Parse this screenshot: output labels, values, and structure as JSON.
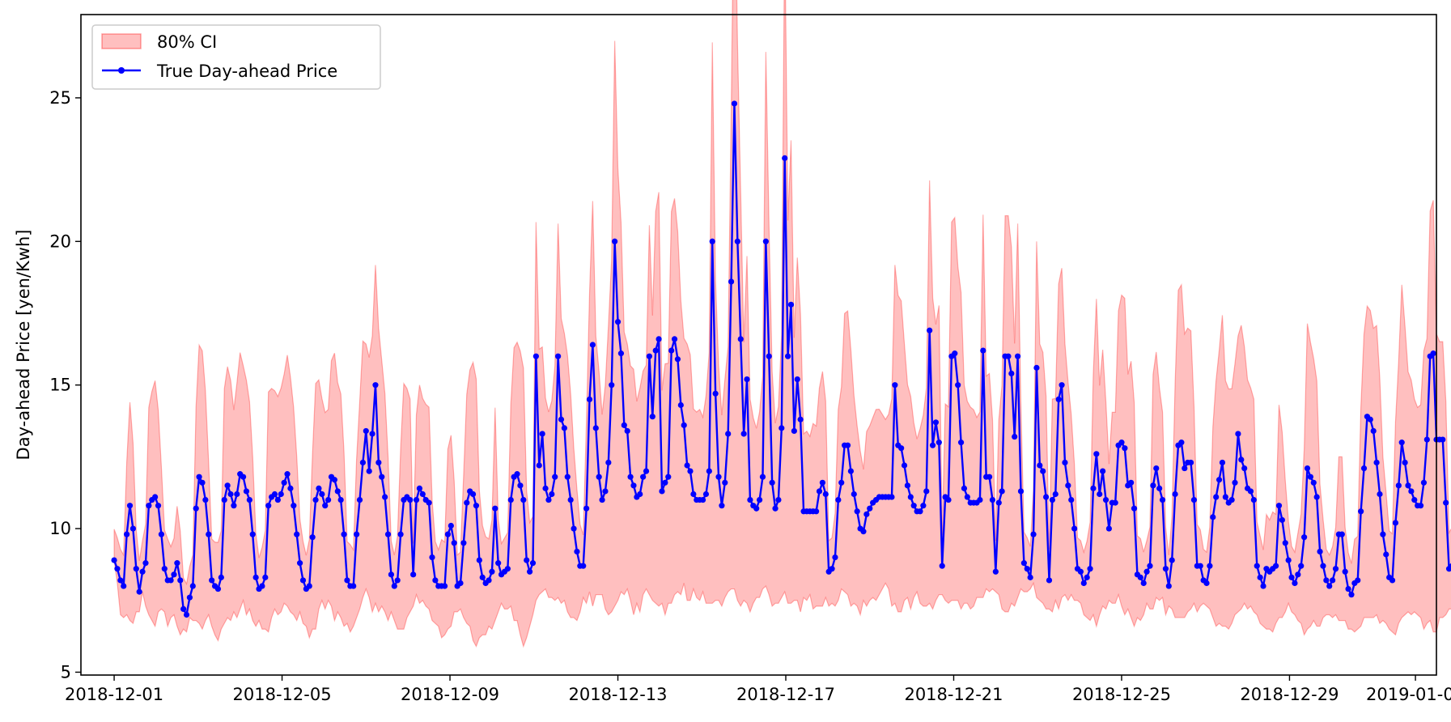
{
  "chart_data": {
    "type": "line",
    "title": "",
    "xlabel": "",
    "ylabel": "Day-ahead Price [yen/Kwh]",
    "xlim": [
      "2018-11-30T05:00",
      "2019-01-01T12:00"
    ],
    "ylim": [
      4.9,
      27.9
    ],
    "x_start": "2018-12-01T00:00",
    "x_end": "2019-01-01T00:00",
    "x_step_hours": 1.8,
    "x_ticks": [
      "2018-12-01",
      "2018-12-05",
      "2018-12-09",
      "2018-12-13",
      "2018-12-17",
      "2018-12-21",
      "2018-12-25",
      "2018-12-29",
      "2019-01-01"
    ],
    "y_ticks": [
      5,
      10,
      15,
      20,
      25
    ],
    "grid": false,
    "legend": "upper-left",
    "series": [
      {
        "name": "True Day-ahead Price",
        "color": "#0000ff",
        "style": "line-with-dot-markers",
        "values": [
          8.9,
          8.6,
          8.2,
          8.0,
          9.8,
          10.8,
          10.0,
          8.6,
          7.8,
          8.5,
          8.8,
          10.8,
          11.0,
          11.1,
          10.8,
          9.8,
          8.6,
          8.2,
          8.2,
          8.4,
          8.8,
          8.2,
          7.2,
          7.0,
          7.6,
          8.0,
          10.7,
          11.8,
          11.6,
          11.0,
          9.8,
          8.2,
          8.0,
          7.9,
          8.3,
          11.0,
          11.5,
          11.2,
          10.8,
          11.2,
          11.9,
          11.8,
          11.3,
          11.0,
          9.8,
          8.3,
          7.9,
          8.0,
          8.3,
          10.8,
          11.1,
          11.2,
          11.0,
          11.2,
          11.6,
          11.9,
          11.4,
          10.8,
          9.8,
          8.8,
          8.2,
          7.9,
          8.0,
          9.7,
          11.0,
          11.4,
          11.2,
          10.8,
          11.0,
          11.8,
          11.7,
          11.3,
          11.0,
          9.8,
          8.2,
          8.0,
          8.0,
          9.8,
          11.0,
          12.3,
          13.4,
          12.0,
          13.3,
          15.0,
          12.3,
          11.8,
          11.1,
          9.8,
          8.4,
          8.0,
          8.2,
          9.8,
          11.0,
          11.1,
          11.0,
          8.4,
          11.0,
          11.4,
          11.2,
          11.0,
          10.9,
          9.0,
          8.2,
          8.0,
          8.0,
          8.0,
          9.8,
          10.1,
          9.5,
          8.0,
          8.1,
          9.5,
          10.9,
          11.3,
          11.2,
          10.8,
          8.9,
          8.3,
          8.1,
          8.2,
          8.5,
          10.7,
          8.8,
          8.4,
          8.5,
          8.6,
          11.0,
          11.8,
          11.9,
          11.5,
          11.0,
          8.9,
          8.5,
          8.8,
          16.0,
          12.2,
          13.3,
          11.4,
          11.0,
          11.2,
          11.8,
          16.0,
          13.8,
          13.5,
          11.8,
          11.0,
          10.0,
          9.2,
          8.7,
          8.7,
          10.7,
          14.5,
          16.4,
          13.5,
          11.8,
          11.0,
          11.3,
          12.3,
          15.0,
          20.0,
          17.2,
          16.1,
          13.6,
          13.4,
          11.8,
          11.5,
          11.1,
          11.2,
          11.8,
          12.0,
          16.0,
          13.9,
          16.2,
          16.6,
          11.3,
          11.6,
          11.8,
          16.2,
          16.6,
          15.9,
          14.3,
          13.6,
          12.2,
          12.0,
          11.2,
          11.0,
          11.0,
          11.0,
          11.2,
          12.0,
          20.0,
          14.7,
          11.8,
          10.8,
          11.6,
          13.3,
          18.6,
          24.8,
          20.0,
          16.6,
          13.3,
          15.2,
          11.0,
          10.8,
          10.7,
          11.0,
          11.8,
          20.0,
          16.0,
          11.6,
          10.7,
          11.0,
          13.5,
          22.9,
          16.0,
          17.8,
          13.4,
          15.2,
          13.8,
          10.6,
          10.6,
          10.6,
          10.6,
          10.6,
          11.3,
          11.6,
          11.2,
          8.5,
          8.6,
          9.0,
          11.0,
          11.6,
          12.9,
          12.9,
          12.0,
          11.2,
          10.6,
          10.0,
          9.9,
          10.5,
          10.7,
          10.9,
          11.0,
          11.1,
          11.1,
          11.1,
          11.1,
          11.1,
          15.0,
          12.9,
          12.8,
          12.2,
          11.5,
          11.1,
          10.8,
          10.6,
          10.6,
          10.8,
          11.3,
          16.9,
          12.9,
          13.7,
          13.0,
          8.7,
          11.1,
          11.0,
          16.0,
          16.1,
          15.0,
          13.0,
          11.4,
          11.1,
          10.9,
          10.9,
          10.9,
          11.0,
          16.2,
          11.8,
          11.8,
          11.0,
          8.5,
          10.9,
          11.3,
          16.0,
          16.0,
          15.4,
          13.2,
          16.0,
          11.3,
          8.8,
          8.6,
          8.3,
          9.8,
          15.6,
          12.2,
          12.0,
          11.1,
          8.2,
          11.0,
          11.2,
          14.5,
          15.0,
          12.3,
          11.5,
          11.0,
          10.0,
          8.6,
          8.5,
          8.1,
          8.3,
          8.6,
          11.4,
          12.6,
          11.2,
          12.0,
          11.0,
          10.0,
          10.9,
          10.9,
          12.9,
          13.0,
          12.8,
          11.5,
          11.6,
          10.7,
          8.4,
          8.3,
          8.1,
          8.5,
          8.7,
          11.5,
          12.1,
          11.4,
          11.0,
          8.6,
          8.0,
          8.9,
          11.2,
          12.9,
          13.0,
          12.1,
          12.3,
          12.3,
          11.0,
          8.7,
          8.7,
          8.2,
          8.1,
          8.7,
          10.4,
          11.1,
          11.7,
          12.3,
          11.1,
          10.9,
          11.0,
          11.6,
          13.3,
          12.4,
          12.1,
          11.4,
          11.3,
          11.0,
          8.7,
          8.3,
          8.0,
          8.6,
          8.5,
          8.6,
          8.7,
          10.8,
          10.3,
          9.5,
          8.9,
          8.3,
          8.1,
          8.4,
          8.7,
          9.7,
          12.1,
          11.8,
          11.6,
          11.1,
          9.2,
          8.7,
          8.2,
          8.0,
          8.2,
          8.6,
          9.8,
          9.8,
          8.5,
          7.9,
          7.7,
          8.1,
          8.2,
          10.6,
          12.1,
          13.9,
          13.8,
          13.4,
          12.3,
          11.2,
          9.8,
          9.1,
          8.3,
          8.2,
          10.2,
          11.5,
          13.0,
          12.3,
          11.5,
          11.3,
          11.0,
          10.8,
          10.8,
          11.6,
          13.1,
          16.0,
          16.1,
          13.1,
          13.1,
          13.1,
          10.9,
          8.6,
          8.7,
          8.4,
          8.6,
          8.8,
          10.6,
          11.6,
          13.7,
          12.5,
          12.2,
          10.7,
          8.8,
          11.2,
          11.8,
          13.4,
          13.7,
          13.4,
          13.1,
          11.8,
          11.5,
          10.8,
          8.9,
          8.7,
          8.6,
          8.5,
          9.9,
          11.4,
          11.6,
          11.7,
          11.1,
          11.0,
          8.7,
          10.9,
          9.5,
          11.3,
          12.3,
          11.9,
          11.7,
          11.5,
          11.3,
          11.0,
          9.0,
          8.6,
          8.2,
          8.0,
          9.0,
          12.8,
          11.3,
          11.0,
          10.7,
          8.6,
          10.4,
          11.0,
          11.4,
          12.0,
          12.1,
          11.5,
          11.3,
          11.0,
          11.8,
          10.7,
          8.5,
          8.2,
          8.3,
          8.2,
          10.6,
          10.8,
          10.1,
          8.2,
          8.0,
          7.9,
          8.2,
          10.7,
          11.4,
          11.7,
          11.4,
          11.1,
          11.8,
          11.1,
          10.0,
          8.9,
          8.4,
          8.8,
          9.5,
          10.8,
          10.9,
          9.8,
          8.9,
          8.2,
          8.1,
          8.2,
          8.9,
          10.0,
          10.9,
          12.1,
          13.6,
          13.7,
          13.6,
          13.7,
          13.7,
          11.5,
          10.9,
          9.0,
          8.6,
          9.0,
          8.9,
          9.7,
          10.9,
          11.0,
          9.0,
          8.8,
          8.6,
          7.9,
          7.9,
          8.0,
          8.2,
          8.9,
          10.7,
          11.3,
          12.4,
          11.3,
          11.3,
          11.0,
          10.9,
          10.9
        ]
      },
      {
        "name": "80% CI",
        "type": "band",
        "color": "#ff0000",
        "lower": [
          9.8,
          8.1,
          7.0,
          6.9,
          7.0,
          6.8,
          6.7,
          7.1,
          7.1,
          7.8,
          7.3,
          7.0,
          6.8,
          6.6,
          7.1,
          7.2,
          7.1,
          6.6,
          6.9,
          7.0,
          6.6,
          6.3,
          6.5,
          6.4,
          6.9,
          6.8,
          6.8,
          6.7,
          6.5,
          6.8,
          7.0,
          6.6,
          6.3,
          6.1,
          6.5,
          6.7,
          6.9,
          6.8,
          7.1,
          6.9,
          7.2,
          7.5,
          7.0,
          7.2,
          6.8,
          6.6,
          6.8,
          6.5,
          6.5,
          6.4,
          6.9,
          7.2,
          7.0,
          7.1,
          7.4,
          7.3,
          7.1,
          7.0,
          6.8,
          7.1,
          6.7,
          6.6,
          6.2,
          6.5,
          6.5,
          7.2,
          7.5,
          7.2,
          7.5,
          7.3,
          6.8,
          7.1,
          6.9,
          6.6,
          6.7,
          6.4,
          6.6,
          6.9,
          7.2,
          7.6,
          7.9,
          7.6,
          7.1,
          7.4,
          7.1,
          7.3,
          7.1,
          6.8,
          7.1,
          6.8,
          6.5,
          6.5,
          6.5,
          6.9,
          7.1,
          7.3,
          7.7,
          7.4,
          7.5,
          7.3,
          7.2,
          6.8,
          6.7,
          6.6,
          6.2,
          6.3,
          6.5,
          6.6,
          7.1,
          7.1,
          7.2,
          6.9,
          6.7,
          6.6,
          6.1,
          5.9,
          6.2,
          6.3,
          6.3,
          6.6,
          6.5,
          6.8,
          7.1,
          7.4,
          7.2,
          7.2,
          7.3,
          6.8,
          6.8,
          6.3,
          5.9,
          6.2,
          6.6,
          7.0,
          7.5,
          7.7,
          7.8,
          7.9,
          7.6,
          7.6,
          7.5,
          7.6,
          7.4,
          7.5,
          7.1,
          6.9,
          6.9,
          6.8,
          7.1,
          7.6,
          7.4,
          7.8,
          7.3,
          7.7,
          7.7,
          7.7,
          7.2,
          7.0,
          7.1,
          7.3,
          7.5,
          7.8,
          7.7,
          7.9,
          7.5,
          7.0,
          7.4,
          7.1,
          7.7,
          7.9,
          7.7,
          7.5,
          7.4,
          7.3,
          7.4,
          7.0,
          7.4,
          7.4,
          7.7,
          7.8,
          7.7,
          8.1,
          7.5,
          7.5,
          7.9,
          7.6,
          7.5,
          7.8,
          7.4,
          7.4,
          7.4,
          7.5,
          7.5,
          7.3,
          7.6,
          7.8,
          7.9,
          7.9,
          7.5,
          7.3,
          7.5,
          7.4,
          7.1,
          7.4,
          7.6,
          7.6,
          7.9,
          8.0,
          7.7,
          7.3,
          7.4,
          7.4,
          7.6,
          7.8,
          7.4,
          7.4,
          7.5,
          7.5,
          7.1,
          7.6,
          7.5,
          7.7,
          7.2,
          7.3,
          7.3,
          7.3,
          7.6,
          7.3,
          7.4,
          7.3,
          7.5,
          7.9,
          7.8,
          7.7,
          7.3,
          7.4,
          7.3,
          7.0,
          7.5,
          7.3,
          7.5,
          7.6,
          7.5,
          7.7,
          7.9,
          8.1,
          7.9,
          7.3,
          7.4,
          7.1,
          7.1,
          7.5,
          7.6,
          7.2,
          7.6,
          7.8,
          7.4,
          7.3,
          7.3,
          7.4,
          7.2,
          7.5,
          7.7,
          7.7,
          7.5,
          7.4,
          7.5,
          7.5,
          7.5,
          7.2,
          7.4,
          7.4,
          7.2,
          7.3,
          7.6,
          7.6,
          7.6,
          7.9,
          7.8,
          7.9,
          7.8,
          7.7,
          7.2,
          7.1,
          7.1,
          7.4,
          7.3,
          7.6,
          7.9,
          7.8,
          7.8,
          7.9,
          8.1,
          7.6,
          7.5,
          7.4,
          7.2,
          7.2,
          7.1,
          7.5,
          7.2,
          7.6,
          7.7,
          7.5,
          7.7,
          7.5,
          7.5,
          7.4,
          7.0,
          6.9,
          6.8,
          7.0,
          6.6,
          7.0,
          7.3,
          7.2,
          7.5,
          7.4,
          7.4,
          7.7,
          7.3,
          7.0,
          7.2,
          6.9,
          6.6,
          6.9,
          6.8,
          7.0,
          7.4,
          7.2,
          7.2,
          7.6,
          7.5,
          7.6,
          7.0,
          7.3,
          7.2,
          6.9,
          6.9,
          6.9,
          6.9,
          7.1,
          7.2,
          7.4,
          7.1,
          7.3,
          7.4,
          7.3,
          7.2,
          6.9,
          6.6,
          6.7,
          6.6,
          6.6,
          6.5,
          6.7,
          7.0,
          7.1,
          7.2,
          7.4,
          7.2,
          7.3,
          7.1,
          7.0,
          6.7,
          6.6,
          6.5,
          6.5,
          6.4,
          6.7,
          6.9,
          6.9,
          7.1,
          7.4,
          7.1,
          7.0,
          6.8,
          6.7,
          6.3,
          6.5,
          6.6,
          6.8,
          6.6,
          6.6,
          6.9,
          7.0,
          7.0,
          6.9,
          7.0,
          6.8,
          6.8,
          6.8,
          6.5,
          6.5,
          6.4,
          6.5,
          6.6,
          6.9,
          6.9,
          6.9,
          6.9,
          7.0,
          6.7,
          6.8,
          6.7,
          6.5,
          6.4,
          6.3,
          6.7,
          6.9,
          7.0,
          7.1,
          7.0,
          7.1,
          7.0,
          6.9,
          6.5,
          6.7,
          6.8,
          6.4,
          6.4,
          6.9,
          6.9,
          7.0,
          7.2,
          7.2,
          7.3,
          7.3,
          7.1,
          7.0,
          6.8,
          6.6,
          6.6,
          6.8,
          7.1,
          7.0,
          7.1,
          7.3,
          7.3,
          7.2,
          7.2,
          7.1,
          6.8,
          6.8,
          6.7,
          6.7,
          6.5,
          6.9,
          7.0,
          7.2,
          7.1,
          7.4,
          7.4,
          7.4,
          7.0,
          7.1,
          6.9,
          6.8,
          6.5,
          6.6,
          6.8,
          6.9,
          7.3,
          7.4,
          7.5,
          7.3,
          7.1,
          6.9,
          7.0,
          6.9,
          6.7,
          6.7,
          6.5,
          6.8,
          6.9,
          7.2,
          7.2,
          7.2,
          7.2,
          7.2,
          7.3,
          7.1,
          6.9,
          6.7,
          6.5,
          6.5,
          6.7,
          6.8,
          7.1,
          7.3,
          7.4,
          7.2,
          7.3,
          7.2,
          7.0,
          6.7,
          6.8,
          6.8,
          6.6,
          6.7,
          6.8,
          7.0,
          7.1,
          7.4,
          7.3,
          7.5,
          7.2,
          7.1,
          7.1,
          6.8,
          6.4,
          6.6,
          6.6,
          6.6,
          7.0,
          7.1,
          7.3,
          7.2,
          7.2,
          7.4,
          7.0,
          6.9,
          6.6,
          6.6,
          6.5,
          6.3,
          6.7,
          6.7,
          6.9,
          7.1,
          7.2,
          7.3,
          7.5,
          7.1,
          6.9,
          6.9,
          6.9,
          8.8,
          8.9
        ]
      }
    ]
  }
}
